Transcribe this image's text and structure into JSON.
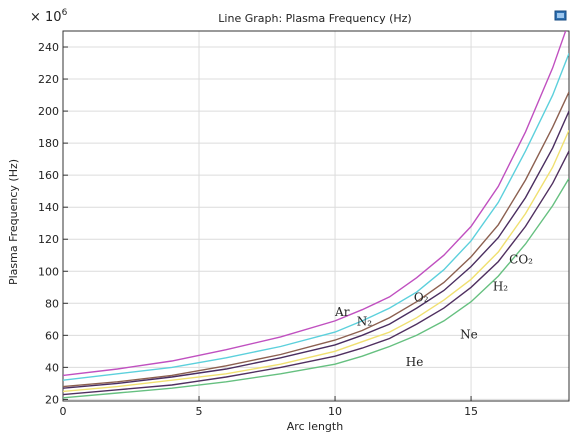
{
  "chart_data": {
    "type": "line",
    "title": "Line Graph: Plasma Frequency (Hz)",
    "xlabel": "Arc length",
    "ylabel": "Plasma Frequency (Hz)",
    "y_multiplier": "× 10^6",
    "xlim": [
      0,
      18.6
    ],
    "ylim": [
      19,
      250
    ],
    "x_ticks": [
      0,
      5,
      10,
      15
    ],
    "y_ticks": [
      20,
      40,
      60,
      80,
      100,
      120,
      140,
      160,
      180,
      200,
      220,
      240
    ],
    "grid": true,
    "series": [
      {
        "name": "Ar",
        "color": "#c050c0",
        "label_at": [
          10.0,
          72
        ],
        "points": [
          [
            0,
            35
          ],
          [
            2,
            39
          ],
          [
            4,
            44
          ],
          [
            6,
            51
          ],
          [
            8,
            59
          ],
          [
            10,
            69
          ],
          [
            11,
            76
          ],
          [
            12,
            84
          ],
          [
            13,
            96
          ],
          [
            14,
            110
          ],
          [
            15,
            128
          ],
          [
            16,
            153
          ],
          [
            17,
            187
          ],
          [
            18,
            227
          ],
          [
            18.6,
            256
          ]
        ]
      },
      {
        "name": "O₂",
        "color": "#5cd0dc",
        "label_at": [
          12.9,
          81
        ],
        "points": [
          [
            0,
            32
          ],
          [
            2,
            36
          ],
          [
            4,
            40
          ],
          [
            6,
            46
          ],
          [
            8,
            53
          ],
          [
            10,
            62
          ],
          [
            11,
            69
          ],
          [
            12,
            77
          ],
          [
            13,
            87
          ],
          [
            14,
            101
          ],
          [
            15,
            119
          ],
          [
            16,
            143
          ],
          [
            17,
            175
          ],
          [
            18,
            210
          ],
          [
            18.6,
            236
          ]
        ]
      },
      {
        "name": "N₂",
        "color": "#8c6050",
        "label_at": [
          10.8,
          66
        ],
        "points": [
          [
            0,
            28
          ],
          [
            2,
            31
          ],
          [
            4,
            35
          ],
          [
            6,
            41
          ],
          [
            8,
            48
          ],
          [
            10,
            57
          ],
          [
            11,
            63
          ],
          [
            12,
            71
          ],
          [
            13,
            81
          ],
          [
            14,
            93
          ],
          [
            15,
            109
          ],
          [
            16,
            129
          ],
          [
            17,
            157
          ],
          [
            18,
            190
          ],
          [
            18.6,
            212
          ]
        ]
      },
      {
        "name": "CO₂",
        "color": "#4a2e60",
        "label_at": [
          16.4,
          105
        ],
        "points": [
          [
            0,
            27
          ],
          [
            2,
            30
          ],
          [
            4,
            34
          ],
          [
            6,
            39
          ],
          [
            8,
            46
          ],
          [
            10,
            54
          ],
          [
            11,
            60
          ],
          [
            12,
            67
          ],
          [
            13,
            77
          ],
          [
            14,
            88
          ],
          [
            15,
            103
          ],
          [
            16,
            121
          ],
          [
            17,
            146
          ],
          [
            18,
            177
          ],
          [
            18.6,
            200
          ]
        ]
      },
      {
        "name": "H₂",
        "color": "#f0e070",
        "label_at": [
          15.8,
          88
        ],
        "points": [
          [
            0,
            25
          ],
          [
            2,
            28
          ],
          [
            4,
            32
          ],
          [
            6,
            36
          ],
          [
            8,
            42
          ],
          [
            10,
            50
          ],
          [
            11,
            56
          ],
          [
            12,
            62
          ],
          [
            13,
            71
          ],
          [
            14,
            82
          ],
          [
            15,
            95
          ],
          [
            16,
            112
          ],
          [
            17,
            136
          ],
          [
            18,
            165
          ],
          [
            18.6,
            188
          ]
        ]
      },
      {
        "name": "Ne",
        "color": "#503060",
        "label_at": [
          14.6,
          58
        ],
        "points": [
          [
            0,
            23
          ],
          [
            2,
            26
          ],
          [
            4,
            29
          ],
          [
            6,
            34
          ],
          [
            8,
            40
          ],
          [
            10,
            47
          ],
          [
            11,
            52
          ],
          [
            12,
            58
          ],
          [
            13,
            67
          ],
          [
            14,
            77
          ],
          [
            15,
            90
          ],
          [
            16,
            106
          ],
          [
            17,
            128
          ],
          [
            18,
            155
          ],
          [
            18.6,
            175
          ]
        ]
      },
      {
        "name": "He",
        "color": "#66c080",
        "label_at": [
          12.6,
          41
        ],
        "points": [
          [
            0,
            21
          ],
          [
            2,
            24
          ],
          [
            4,
            27
          ],
          [
            6,
            31
          ],
          [
            8,
            36
          ],
          [
            10,
            42
          ],
          [
            11,
            47
          ],
          [
            12,
            53
          ],
          [
            13,
            60
          ],
          [
            14,
            69
          ],
          [
            15,
            81
          ],
          [
            16,
            97
          ],
          [
            17,
            117
          ],
          [
            18,
            141
          ],
          [
            18.6,
            158
          ]
        ]
      }
    ],
    "legend": "inline labels"
  }
}
